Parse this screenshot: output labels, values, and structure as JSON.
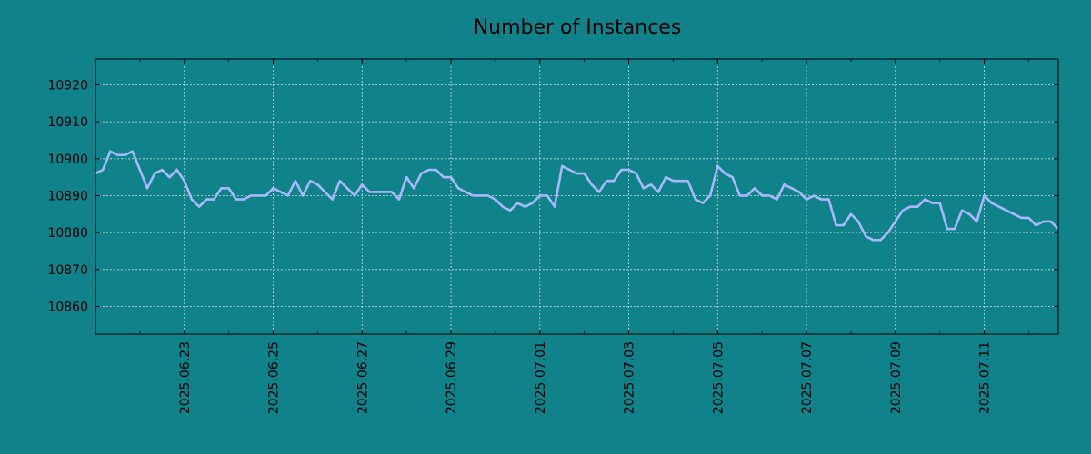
{
  "chart_data": {
    "type": "line",
    "title": "Number of Instances",
    "xlabel": "",
    "ylabel": "",
    "grid": true,
    "x_start": "2025-06-21",
    "x_step_hours": 4,
    "x_ticks": [
      "2025.06.23",
      "2025.06.25",
      "2025.06.27",
      "2025.06.29",
      "2025.07.01",
      "2025.07.03",
      "2025.07.05",
      "2025.07.07",
      "2025.07.09",
      "2025.07.11"
    ],
    "y_ticks": [
      10860,
      10870,
      10880,
      10890,
      10900,
      10910,
      10920
    ],
    "ylim": [
      10852.5,
      10927
    ],
    "series": [
      {
        "name": "",
        "color": "#a8b8ff",
        "values": [
          10896,
          10897,
          10902,
          10901,
          10901,
          10902,
          10897,
          10892,
          10896,
          10897,
          10895,
          10897,
          10894,
          10889,
          10887,
          10889,
          10889,
          10892,
          10892,
          10889,
          10889,
          10890,
          10890,
          10890,
          10892,
          10891,
          10890,
          10894,
          10890,
          10894,
          10893,
          10891,
          10889,
          10894,
          10892,
          10890,
          10893,
          10891,
          10891,
          10891,
          10891,
          10889,
          10895,
          10892,
          10896,
          10897,
          10897,
          10895,
          10895,
          10892,
          10891,
          10890,
          10890,
          10890,
          10889,
          10887,
          10886,
          10888,
          10887,
          10888,
          10890,
          10890,
          10887,
          10898,
          10897,
          10896,
          10896,
          10893,
          10891,
          10894,
          10894,
          10897,
          10897,
          10896,
          10892,
          10893,
          10891,
          10895,
          10894,
          10894,
          10894,
          10889,
          10888,
          10890,
          10898,
          10896,
          10895,
          10890,
          10890,
          10892,
          10890,
          10890,
          10889,
          10893,
          10892,
          10891,
          10889,
          10890,
          10889,
          10889,
          10882,
          10882,
          10885,
          10883,
          10879,
          10878,
          10878,
          10880,
          10883,
          10886,
          10887,
          10887,
          10889,
          10888,
          10888,
          10881,
          10881,
          10886,
          10885,
          10883,
          10890,
          10888,
          10887,
          10886,
          10885,
          10884,
          10884,
          10882,
          10883,
          10883,
          10881
        ]
      }
    ]
  }
}
